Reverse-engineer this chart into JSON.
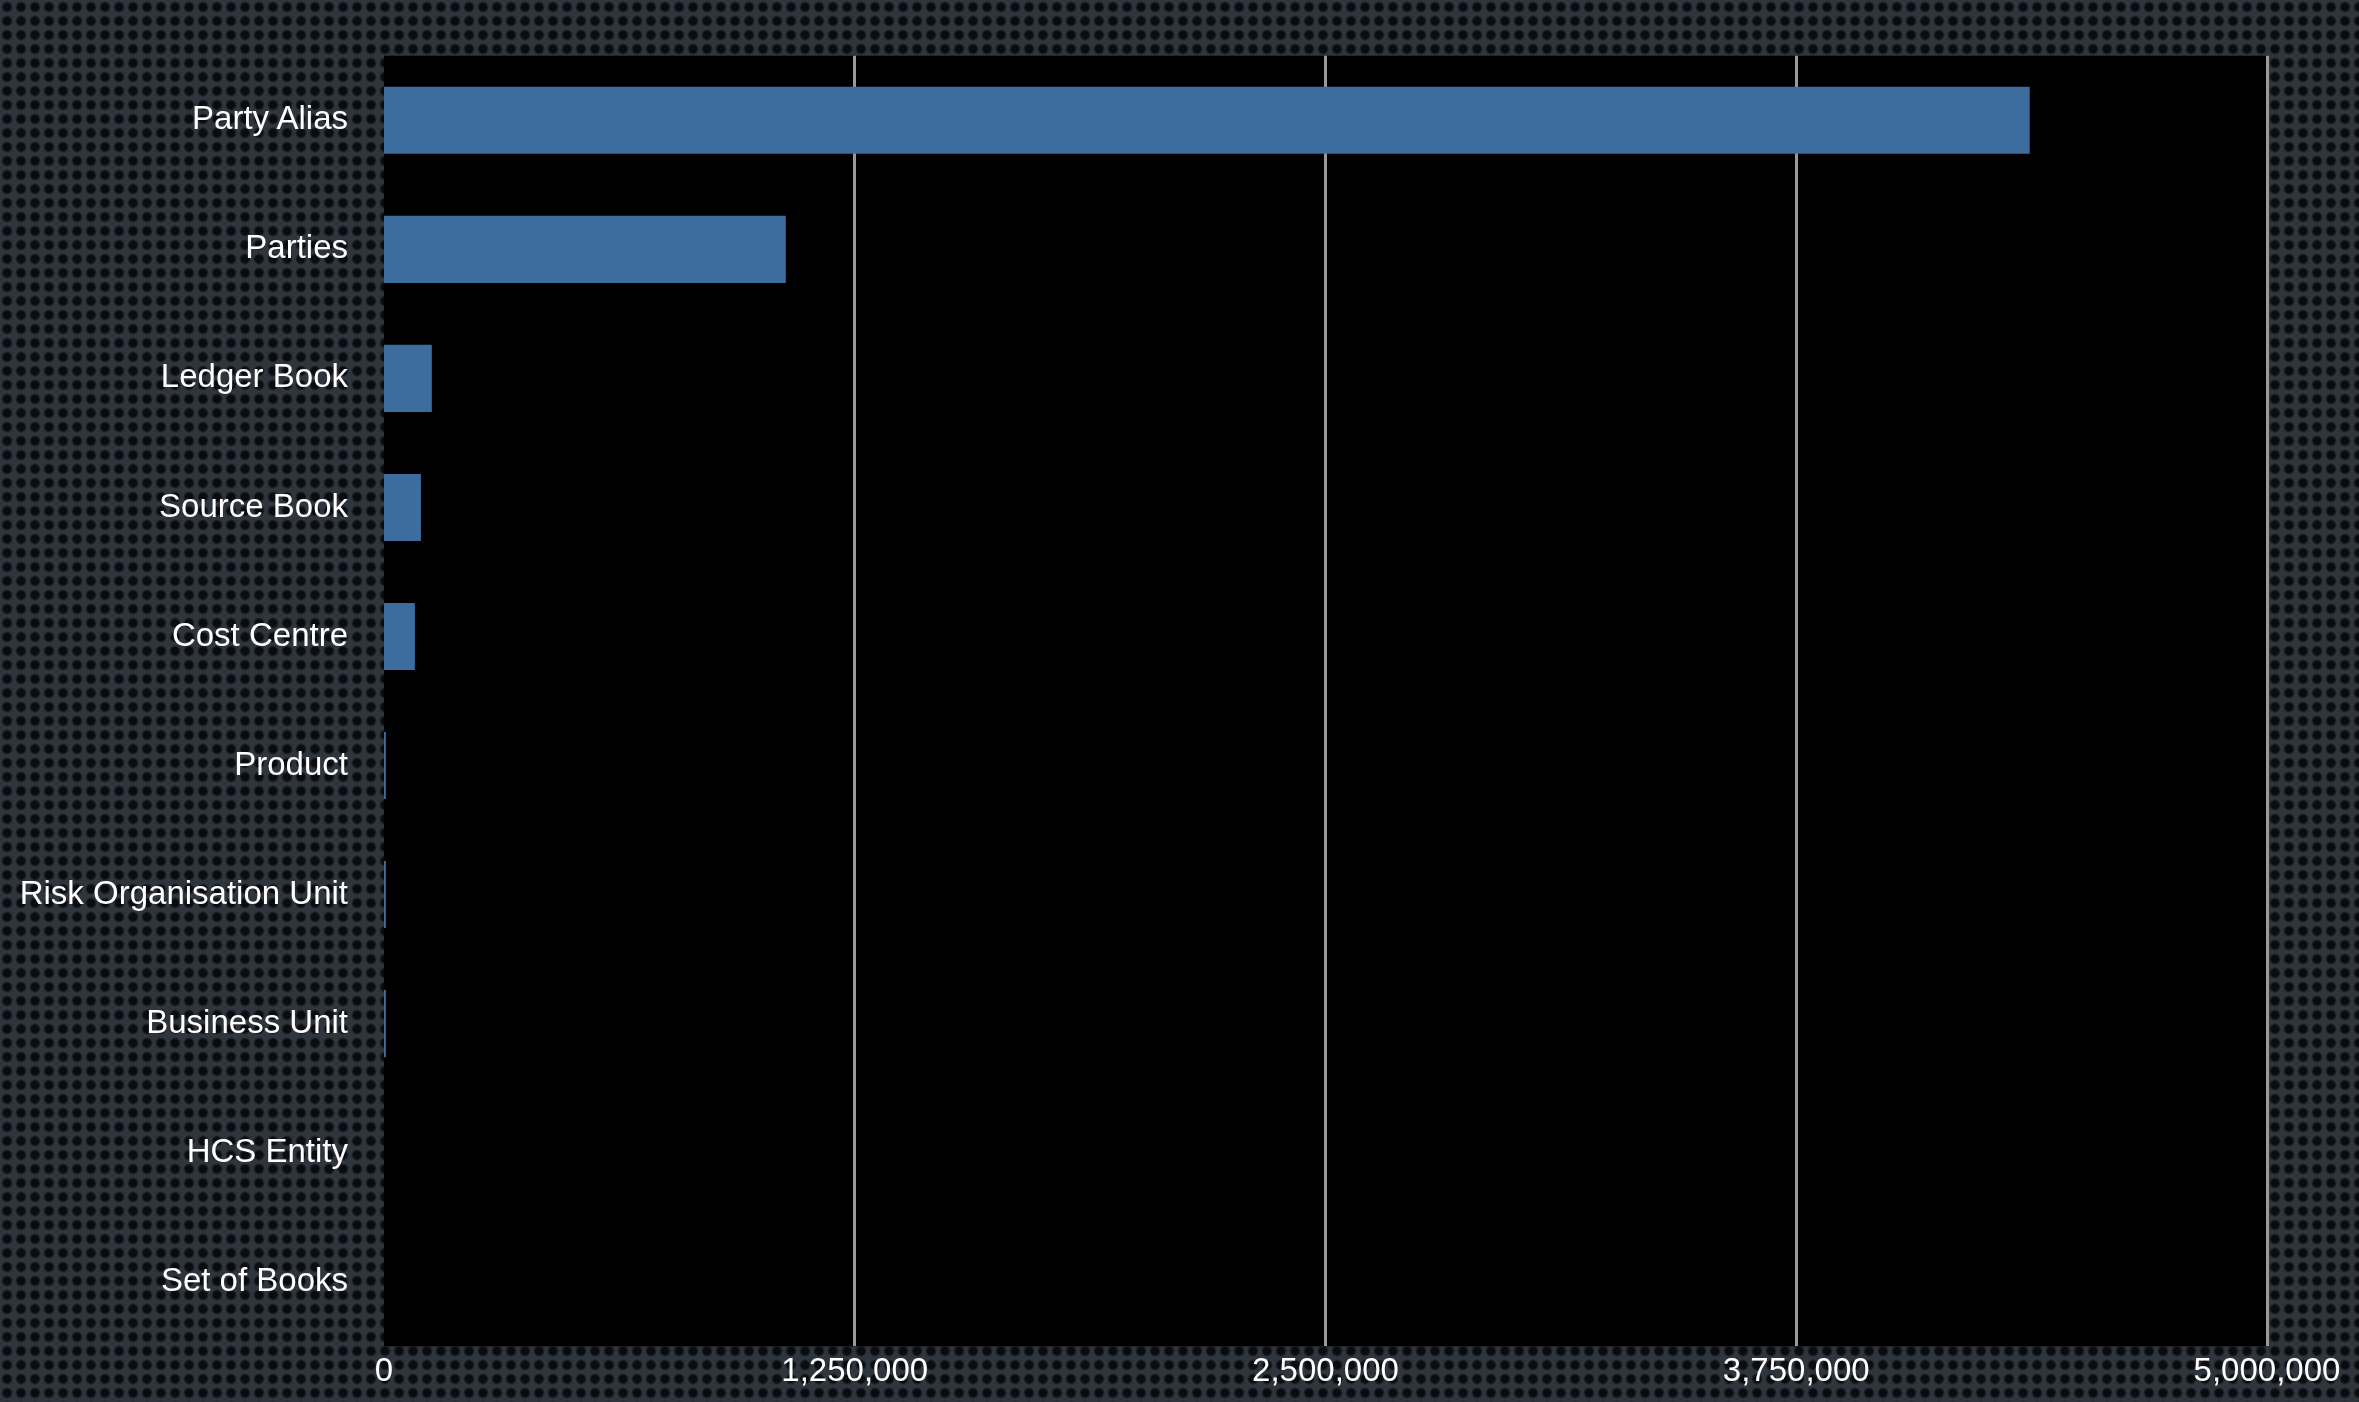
{
  "chart_data": {
    "type": "bar",
    "orientation": "horizontal",
    "categories": [
      "Party Alias",
      "Parties",
      "Ledger Book",
      "Source Book",
      "Cost Centre",
      "Product",
      "Risk Organisation Unit",
      "Business Unit",
      "HCS Entity",
      "Set of Books"
    ],
    "values": [
      4370000,
      1067000,
      127000,
      98000,
      82000,
      5000,
      5000,
      5000,
      0,
      0
    ],
    "color": "#3d6c9e",
    "xlim": [
      0,
      5000000
    ],
    "xticks": [
      0,
      {
        "value": 1250000,
        "label": "1,250,000"
      },
      {
        "value": 2500000,
        "label": "2,500,000"
      },
      {
        "value": 3750000,
        "label": "3,750,000"
      },
      {
        "value": 5000000,
        "label": "5,000,000"
      }
    ],
    "grid": "x",
    "legend": false
  }
}
